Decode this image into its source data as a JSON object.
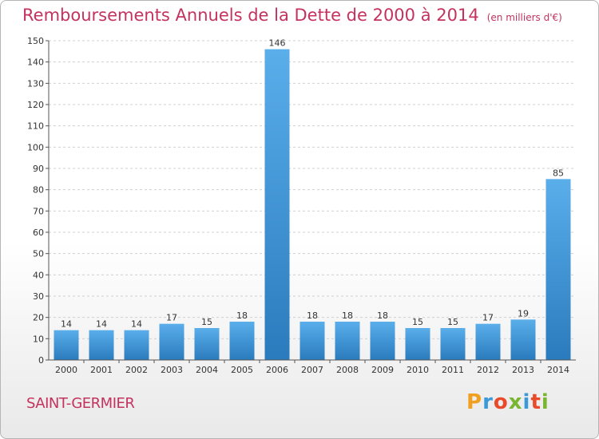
{
  "title": "Remboursements Annuels de la Dette de 2000 à 2014",
  "unit": "(en milliers d'€)",
  "commune": "SAINT-GERMIER",
  "logo": "Proxiti",
  "colors": {
    "bar": "#4a9fdf",
    "bar_dark": "#2878b8",
    "title": "#c4325f",
    "grid": "#d0d0d0"
  },
  "chart_data": {
    "type": "bar",
    "title": "Remboursements Annuels de la Dette de 2000 à 2014",
    "categories": [
      "2000",
      "2001",
      "2002",
      "2003",
      "2004",
      "2005",
      "2006",
      "2007",
      "2008",
      "2009",
      "2010",
      "2011",
      "2012",
      "2013",
      "2014"
    ],
    "values": [
      14,
      14,
      14,
      17,
      15,
      18,
      146,
      18,
      18,
      18,
      15,
      15,
      17,
      19,
      85
    ],
    "ylim": [
      0,
      150
    ],
    "yticks": [
      0,
      10,
      20,
      30,
      40,
      50,
      60,
      70,
      80,
      90,
      100,
      110,
      120,
      130,
      140,
      150
    ],
    "grid": true,
    "xlabel": "",
    "ylabel": ""
  }
}
